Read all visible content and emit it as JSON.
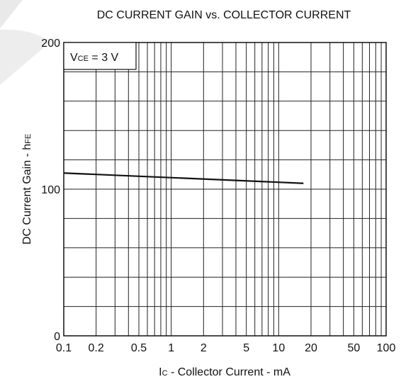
{
  "chart_data": {
    "type": "line",
    "title": "DC CURRENT GAIN vs. COLLECTOR CURRENT",
    "xlabel": "Ic - Collector Current - mA",
    "ylabel": "DC Current Gain - hFE",
    "x_scale": "log",
    "xlim": [
      0.1,
      100
    ],
    "ylim": [
      0,
      200
    ],
    "x_ticks": [
      0.1,
      0.2,
      0.5,
      1,
      2,
      5,
      10,
      20,
      50,
      100
    ],
    "x_tick_labels": [
      "0.1",
      "0.2",
      "0.5",
      "1",
      "2",
      "5",
      "10",
      "20",
      "50",
      "100"
    ],
    "y_ticks": [
      0,
      100,
      200
    ],
    "y_tick_labels": [
      "0",
      "100",
      "200"
    ],
    "grid": true,
    "annotation": "VCE = 3 V",
    "series": [
      {
        "x": [
          0.1,
          17
        ],
        "y": [
          111,
          104
        ]
      }
    ]
  }
}
